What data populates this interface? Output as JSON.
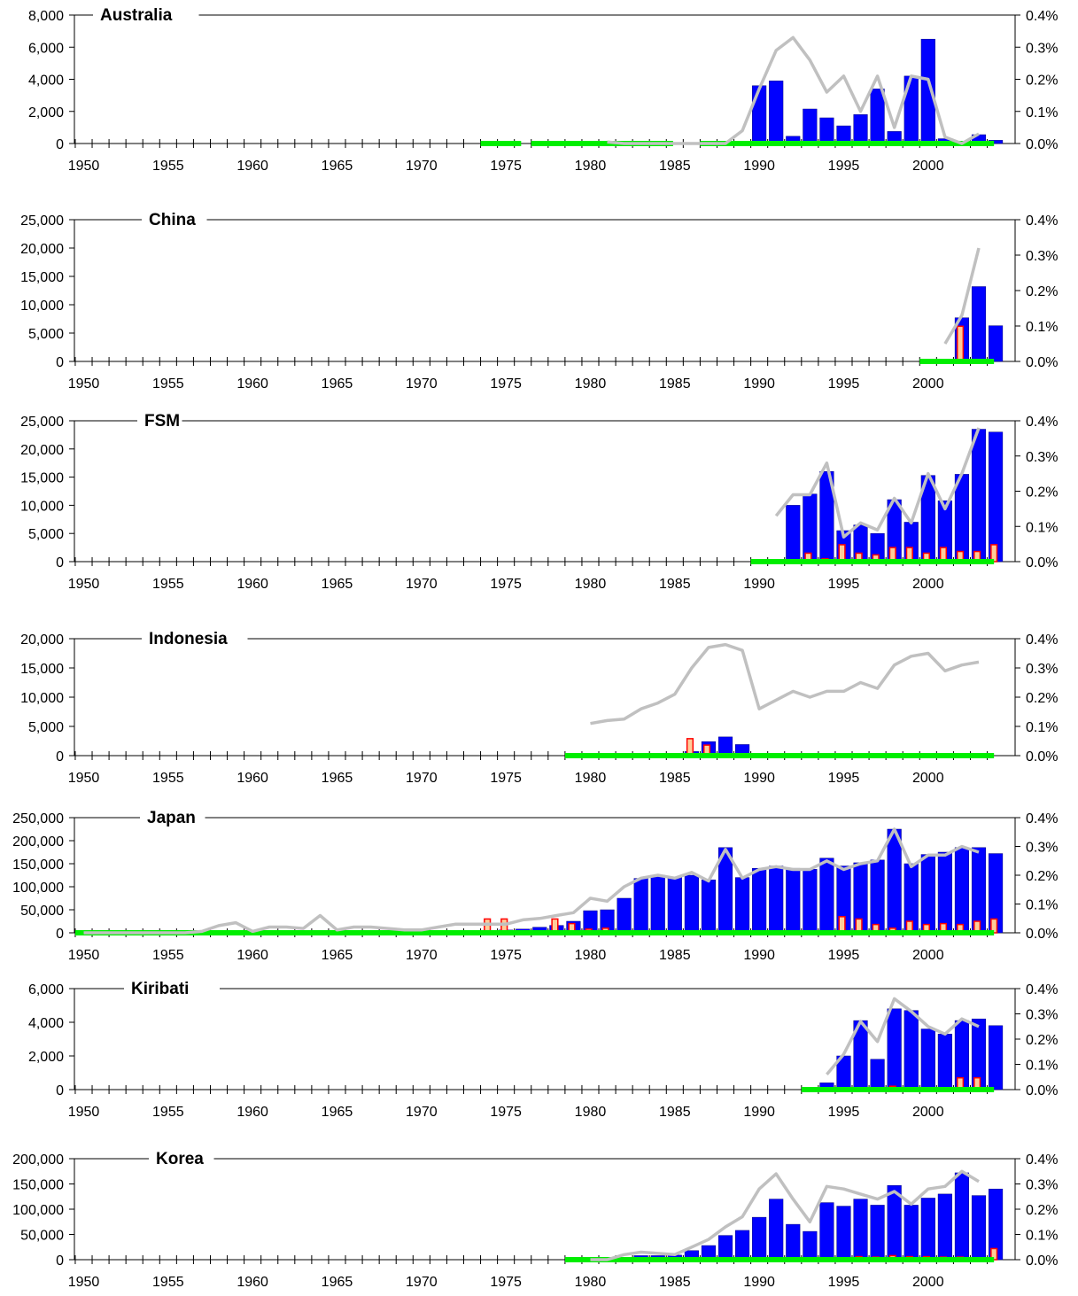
{
  "colors": {
    "bar": "#0000ff",
    "bar_outline": "#000080",
    "small_bar_fill": "#ff0000",
    "small_bar_fill_light": "#ffcc99",
    "small_bar_outline": "#ff0000",
    "line": "#c0c0c0",
    "base_line": "#00ee00",
    "axis": "#000000"
  },
  "chart_data": [
    {
      "type": "bar",
      "title": "Australia",
      "x_start": 1950,
      "x_end": 2004,
      "xticks": [
        "1950",
        "1955",
        "1960",
        "1965",
        "1970",
        "1975",
        "1980",
        "1985",
        "1990",
        "1995",
        "2000"
      ],
      "ylim": [
        0,
        8000
      ],
      "yticks": [
        "0",
        "2,000",
        "4,000",
        "6,000",
        "8,000"
      ],
      "y2lim": [
        0,
        0.004
      ],
      "y2ticks": [
        "0.0%",
        "0.1%",
        "0.2%",
        "0.3%",
        "0.4%"
      ],
      "bars": {
        "years": [
          1990,
          1991,
          1992,
          1993,
          1994,
          1995,
          1996,
          1997,
          1998,
          1999,
          2000,
          2001,
          2002,
          2003,
          2004
        ],
        "values": [
          3600,
          3900,
          450,
          2150,
          1600,
          1100,
          1800,
          3400,
          750,
          4200,
          6500,
          300,
          100,
          550,
          200
        ]
      },
      "small_bars": {
        "years": [],
        "values": []
      },
      "line": {
        "years": [
          1981,
          1982,
          1983,
          1984,
          1985,
          1986,
          1987,
          1988,
          1989,
          1990,
          1991,
          1992,
          1993,
          1994,
          1995,
          1996,
          1997,
          1998,
          1999,
          2000,
          2001,
          2002,
          2003
        ],
        "values": [
          5e-05,
          0.0,
          0.0,
          0.0,
          0.0,
          0.0,
          0.0,
          0.0,
          0.0004,
          0.0017,
          0.0029,
          0.0033,
          0.0026,
          0.0016,
          0.0021,
          0.001,
          0.0021,
          0.0005,
          0.0021,
          0.002,
          0.0002,
          0.0,
          0.0003
        ]
      },
      "base_segments": [
        [
          1974,
          1976
        ],
        [
          1977,
          1985
        ],
        [
          1987,
          2004
        ]
      ]
    },
    {
      "type": "bar",
      "title": "China",
      "x_start": 1950,
      "x_end": 2004,
      "xticks": [
        "1950",
        "1955",
        "1960",
        "1965",
        "1970",
        "1975",
        "1980",
        "1985",
        "1990",
        "1995",
        "2000"
      ],
      "ylim": [
        0,
        25000
      ],
      "yticks": [
        "0",
        "5,000",
        "10,000",
        "15,000",
        "20,000",
        "25,000"
      ],
      "y2lim": [
        0,
        0.004
      ],
      "y2ticks": [
        "0.0%",
        "0.1%",
        "0.2%",
        "0.3%",
        "0.4%"
      ],
      "bars": {
        "years": [
          2002,
          2003,
          2004
        ],
        "values": [
          7700,
          13200,
          6300
        ]
      },
      "small_bars": {
        "years": [
          2002
        ],
        "values": [
          6200
        ]
      },
      "line": {
        "years": [
          2001,
          2002,
          2003
        ],
        "values": [
          0.0005,
          0.0013,
          0.0032
        ]
      },
      "base_segments": [
        [
          2000,
          2004
        ]
      ]
    },
    {
      "type": "bar",
      "title": "FSM",
      "x_start": 1950,
      "x_end": 2004,
      "xticks": [
        "1950",
        "1955",
        "1960",
        "1965",
        "1970",
        "1975",
        "1980",
        "1985",
        "1990",
        "1995",
        "2000"
      ],
      "ylim": [
        0,
        25000
      ],
      "yticks": [
        "0",
        "5,000",
        "10,000",
        "15,000",
        "20,000",
        "25,000"
      ],
      "y2lim": [
        0,
        0.004
      ],
      "y2ticks": [
        "0.0%",
        "0.1%",
        "0.2%",
        "0.3%",
        "0.4%"
      ],
      "bars": {
        "years": [
          1992,
          1993,
          1994,
          1995,
          1996,
          1997,
          1998,
          1999,
          2000,
          2001,
          2002,
          2003,
          2004
        ],
        "values": [
          10000,
          12000,
          16000,
          5500,
          6500,
          5000,
          11000,
          7000,
          15300,
          10800,
          15500,
          23500,
          23000
        ]
      },
      "small_bars": {
        "years": [
          1993,
          1994,
          1995,
          1996,
          1997,
          1998,
          1999,
          2000,
          2001,
          2002,
          2003,
          2004
        ],
        "values": [
          1500,
          500,
          3000,
          1500,
          1200,
          2500,
          2500,
          1500,
          2500,
          1800,
          1800,
          3000
        ]
      },
      "line": {
        "years": [
          1991,
          1992,
          1993,
          1994,
          1995,
          1996,
          1997,
          1998,
          1999,
          2000,
          2001,
          2002,
          2003
        ],
        "values": [
          0.0013,
          0.0019,
          0.0019,
          0.0028,
          0.0007,
          0.0011,
          0.0009,
          0.0018,
          0.0011,
          0.0025,
          0.0015,
          0.0025,
          0.0038
        ]
      },
      "base_segments": [
        [
          1990,
          2004
        ]
      ]
    },
    {
      "type": "bar",
      "title": "Indonesia",
      "x_start": 1950,
      "x_end": 2004,
      "xticks": [
        "1950",
        "1955",
        "1960",
        "1965",
        "1970",
        "1975",
        "1980",
        "1985",
        "1990",
        "1995",
        "2000"
      ],
      "ylim": [
        0,
        20000
      ],
      "yticks": [
        "0",
        "5,000",
        "10,000",
        "15,000",
        "20,000"
      ],
      "y2lim": [
        0,
        0.004
      ],
      "y2ticks": [
        "0.0%",
        "0.1%",
        "0.2%",
        "0.3%",
        "0.4%"
      ],
      "bars": {
        "years": [
          1986,
          1987,
          1988,
          1989
        ],
        "values": [
          700,
          2400,
          3200,
          1900
        ]
      },
      "small_bars": {
        "years": [
          1986,
          1987
        ],
        "values": [
          2900,
          1800
        ]
      },
      "line": {
        "years": [
          1980,
          1981,
          1982,
          1983,
          1984,
          1985,
          1986,
          1987,
          1988,
          1989,
          1990,
          1991,
          1992,
          1993,
          1994,
          1995,
          1996,
          1997,
          1998,
          1999,
          2000,
          2001,
          2002,
          2003
        ],
        "values": [
          0.0011,
          0.0012,
          0.00125,
          0.0016,
          0.0018,
          0.0021,
          0.003,
          0.0037,
          0.0038,
          0.0036,
          0.0016,
          0.0019,
          0.0022,
          0.002,
          0.0022,
          0.0022,
          0.0025,
          0.0023,
          0.0031,
          0.0034,
          0.0035,
          0.0029,
          0.0031,
          0.0032
        ]
      },
      "base_segments": [
        [
          1979,
          2004
        ]
      ]
    },
    {
      "type": "bar",
      "title": "Japan",
      "x_start": 1950,
      "x_end": 2004,
      "xticks": [
        "1950",
        "1955",
        "1960",
        "1965",
        "1970",
        "1975",
        "1980",
        "1985",
        "1990",
        "1995",
        "2000"
      ],
      "ylim": [
        0,
        250000
      ],
      "yticks": [
        "0",
        "50,000",
        "100,000",
        "150,000",
        "200,000",
        "250,000"
      ],
      "y2lim": [
        0,
        0.004
      ],
      "y2ticks": [
        "0.0%",
        "0.1%",
        "0.2%",
        "0.3%",
        "0.4%"
      ],
      "bars": {
        "years": [
          1950,
          1951,
          1952,
          1953,
          1954,
          1955,
          1956,
          1957,
          1958,
          1959,
          1960,
          1961,
          1962,
          1963,
          1964,
          1965,
          1966,
          1967,
          1968,
          1969,
          1970,
          1971,
          1972,
          1973,
          1974,
          1975,
          1976,
          1977,
          1978,
          1979,
          1980,
          1981,
          1982,
          1983,
          1984,
          1985,
          1986,
          1987,
          1988,
          1989,
          1990,
          1991,
          1992,
          1993,
          1994,
          1995,
          1996,
          1997,
          1998,
          1999,
          2000,
          2001,
          2002,
          2003,
          2004
        ],
        "values": [
          500,
          500,
          500,
          500,
          500,
          1000,
          1000,
          1000,
          1000,
          1000,
          1000,
          1000,
          1500,
          1500,
          1500,
          1500,
          1500,
          1500,
          2000,
          2000,
          2000,
          3000,
          4000,
          5000,
          5000,
          6000,
          8000,
          12000,
          16000,
          25000,
          48000,
          50000,
          75000,
          118000,
          125000,
          120000,
          125000,
          115000,
          185000,
          120000,
          140000,
          145000,
          140000,
          138000,
          162000,
          145000,
          152000,
          158000,
          225000,
          150000,
          170000,
          175000,
          185000,
          185000,
          172000
        ]
      },
      "small_bars": {
        "years": [
          1970,
          1974,
          1975,
          1978,
          1979,
          1980,
          1981,
          1995,
          1996,
          1997,
          1998,
          1999,
          2000,
          2001,
          2002,
          2003,
          2004
        ],
        "values": [
          8000,
          30000,
          30000,
          30000,
          20000,
          8000,
          10000,
          35000,
          30000,
          18000,
          10000,
          25000,
          18000,
          20000,
          18000,
          25000,
          30000
        ]
      },
      "line": {
        "years": [
          1950,
          1951,
          1952,
          1953,
          1954,
          1955,
          1956,
          1957,
          1958,
          1959,
          1960,
          1961,
          1962,
          1963,
          1964,
          1965,
          1966,
          1967,
          1968,
          1969,
          1970,
          1971,
          1972,
          1973,
          1974,
          1975,
          1976,
          1977,
          1978,
          1979,
          1980,
          1981,
          1982,
          1983,
          1984,
          1985,
          1986,
          1987,
          1988,
          1989,
          1990,
          1991,
          1992,
          1993,
          1994,
          1995,
          1996,
          1997,
          1998,
          1999,
          2000,
          2001,
          2002,
          2003
        ],
        "values": [
          0.0,
          0.0,
          0.0,
          0.0,
          0.0,
          0.0,
          0.0,
          5e-05,
          0.00025,
          0.00035,
          5e-05,
          0.0002,
          0.0002,
          0.00015,
          0.0006,
          0.0001,
          0.0002,
          0.0002,
          0.00015,
          0.0001,
          0.0001,
          0.0002,
          0.0003,
          0.0003,
          0.0003,
          0.0003,
          0.00045,
          0.0005,
          0.0006,
          0.0007,
          0.0012,
          0.0011,
          0.0016,
          0.0019,
          0.002,
          0.0019,
          0.0021,
          0.0018,
          0.0029,
          0.0019,
          0.0022,
          0.0023,
          0.0022,
          0.0022,
          0.0025,
          0.0022,
          0.0024,
          0.0025,
          0.0036,
          0.0023,
          0.0027,
          0.0027,
          0.003,
          0.0028
        ]
      },
      "base_segments": [
        [
          1950,
          2004
        ]
      ]
    },
    {
      "type": "bar",
      "title": "Kiribati",
      "x_start": 1950,
      "x_end": 2004,
      "xticks": [
        "1950",
        "1955",
        "1960",
        "1965",
        "1970",
        "1975",
        "1980",
        "1985",
        "1990",
        "1995",
        "2000"
      ],
      "ylim": [
        0,
        6000
      ],
      "yticks": [
        "0",
        "2,000",
        "4,000",
        "6,000"
      ],
      "y2lim": [
        0,
        0.004
      ],
      "y2ticks": [
        "0.0%",
        "0.1%",
        "0.2%",
        "0.3%",
        "0.4%"
      ],
      "bars": {
        "years": [
          1994,
          1995,
          1996,
          1997,
          1998,
          1999,
          2000,
          2001,
          2002,
          2003,
          2004
        ],
        "values": [
          400,
          2000,
          4100,
          1800,
          4800,
          4700,
          3600,
          3300,
          4100,
          4200,
          3800
        ]
      },
      "small_bars": {
        "years": [
          1998,
          2002,
          2003
        ],
        "values": [
          200,
          700,
          700
        ]
      },
      "line": {
        "years": [
          1994,
          1995,
          1996,
          1997,
          1998,
          1999,
          2000,
          2001,
          2002,
          2003
        ],
        "values": [
          0.0006,
          0.0014,
          0.0027,
          0.0019,
          0.0036,
          0.0031,
          0.0025,
          0.0022,
          0.0028,
          0.0025
        ]
      },
      "base_segments": [
        [
          1993,
          2004
        ]
      ]
    },
    {
      "type": "bar",
      "title": "Korea",
      "x_start": 1950,
      "x_end": 2004,
      "xticks": [
        "1950",
        "1955",
        "1960",
        "1965",
        "1970",
        "1975",
        "1980",
        "1985",
        "1990",
        "1995",
        "2000"
      ],
      "ylim": [
        0,
        200000
      ],
      "yticks": [
        "0",
        "50,000",
        "100,000",
        "150,000",
        "200,000"
      ],
      "y2lim": [
        0,
        0.004
      ],
      "y2ticks": [
        "0.0%",
        "0.1%",
        "0.2%",
        "0.3%",
        "0.4%"
      ],
      "bars": {
        "years": [
          1982,
          1983,
          1984,
          1985,
          1986,
          1987,
          1988,
          1989,
          1990,
          1991,
          1992,
          1993,
          1994,
          1995,
          1996,
          1997,
          1998,
          1999,
          2000,
          2001,
          2002,
          2003,
          2004
        ],
        "values": [
          3000,
          8000,
          8000,
          9000,
          18000,
          28000,
          48000,
          58000,
          84000,
          120000,
          70000,
          56000,
          113000,
          106000,
          120000,
          108000,
          147000,
          108000,
          122000,
          130000,
          172000,
          127000,
          140000
        ]
      },
      "small_bars": {
        "years": [
          1996,
          1997,
          1998,
          1999,
          2000,
          2001,
          2002,
          2003,
          2004
        ],
        "values": [
          6000,
          5000,
          8000,
          6000,
          6000,
          5000,
          5000,
          3000,
          22000
        ]
      },
      "line": {
        "years": [
          1980,
          1981,
          1982,
          1983,
          1984,
          1985,
          1986,
          1987,
          1988,
          1989,
          1990,
          1991,
          1992,
          1993,
          1994,
          1995,
          1996,
          1997,
          1998,
          1999,
          2000,
          2001,
          2002,
          2003
        ],
        "values": [
          0.0,
          0.0,
          0.0002,
          0.0003,
          0.00025,
          0.0002,
          0.0005,
          0.0008,
          0.0013,
          0.0017,
          0.0028,
          0.0034,
          0.0024,
          0.0015,
          0.0029,
          0.0028,
          0.0026,
          0.0024,
          0.0027,
          0.0022,
          0.0028,
          0.0029,
          0.0035,
          0.0031
        ]
      },
      "base_segments": [
        [
          1979,
          2004
        ]
      ]
    }
  ]
}
